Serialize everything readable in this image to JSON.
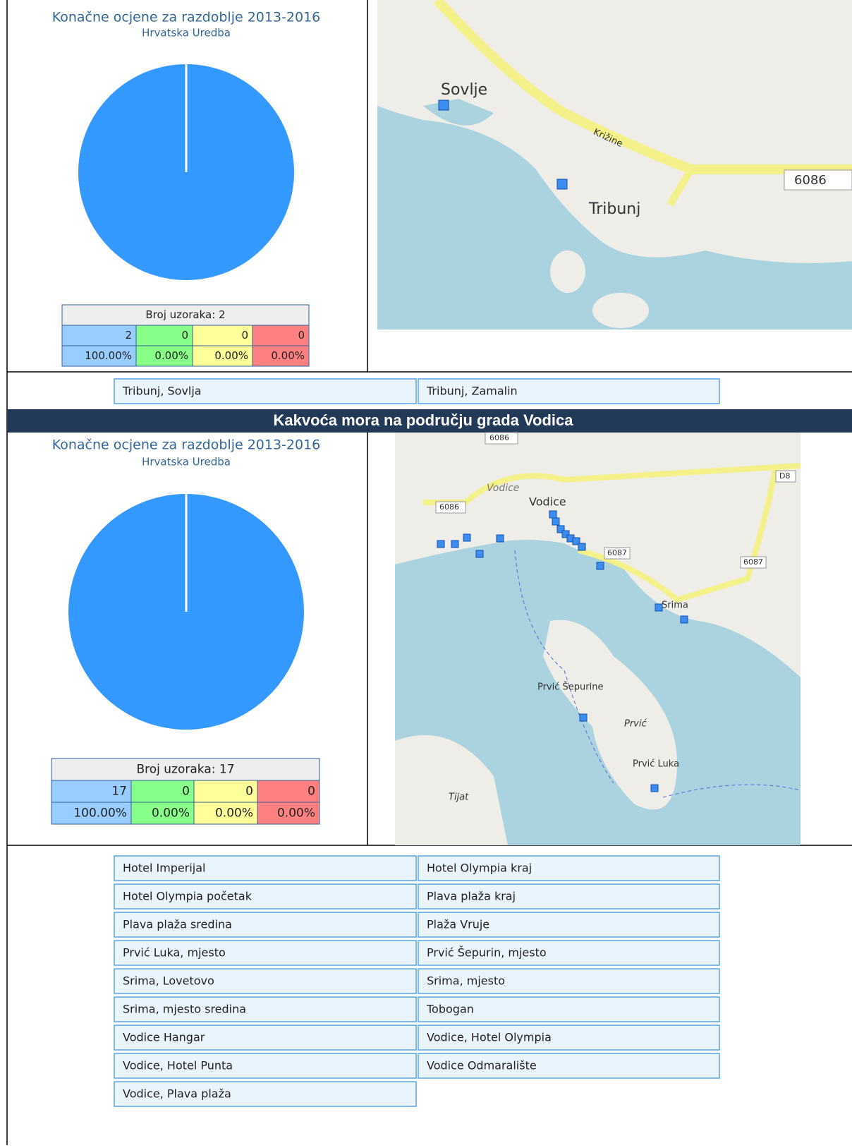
{
  "sections": [
    {
      "chart": {
        "type": "pie",
        "title": "Konačne ocjene za razdoblje 2013-2016",
        "subtitle": "Hrvatska Uredba",
        "sample_label": "Broj uzoraka: 2",
        "values": [
          2,
          0,
          0,
          0
        ],
        "colors": [
          "#3399ff",
          "#66ee66",
          "#ffee88",
          "#ff7070"
        ],
        "cell_colors": [
          "#99ccff",
          "#88ff88",
          "#ffff99",
          "#ff8080"
        ],
        "percent_labels": [
          "100.00%",
          "0.00%",
          "0.00%",
          "0.00%"
        ]
      },
      "map": {
        "labels": [
          "Sovlje",
          "Križine",
          "Tribunj",
          "6086"
        ]
      },
      "locations": [
        "Tribunj, Sovlja",
        "Tribunj, Zamalin"
      ]
    },
    {
      "heading": "Kakvoća mora na području grada Vodica",
      "chart": {
        "type": "pie",
        "title": "Konačne ocjene za razdoblje 2013-2016",
        "subtitle": "Hrvatska Uredba",
        "sample_label": "Broj uzoraka: 17",
        "values": [
          17,
          0,
          0,
          0
        ],
        "colors": [
          "#3399ff",
          "#66ee66",
          "#ffee88",
          "#ff7070"
        ],
        "cell_colors": [
          "#99ccff",
          "#88ff88",
          "#ffff99",
          "#ff8080"
        ],
        "percent_labels": [
          "100.00%",
          "0.00%",
          "0.00%",
          "0.00%"
        ]
      },
      "map": {
        "labels": [
          "6086",
          "Vodice",
          "Vodice",
          "6086",
          "D8",
          "6087",
          "6087",
          "Srima",
          "Prvić Šepurine",
          "Prvić",
          "Prvić Luka",
          "Tijat"
        ]
      },
      "locations": [
        "Hotel Imperijal",
        "Hotel Olympia kraj",
        "Hotel Olympia početak",
        "Plava plaža kraj",
        "Plava plaža sredina",
        "Plaža Vruje",
        "Prvić Luka, mjesto",
        "Prvić Šepurin, mjesto",
        "Srima, Lovetovo",
        "Srima, mjesto",
        "Srima, mjesto sredina",
        "Tobogan",
        "Vodice Hangar",
        "Vodice, Hotel Olympia",
        "Vodice, Hotel Punta",
        "Vodice Odmaralište",
        "Vodice, Plava plaža"
      ]
    }
  ]
}
